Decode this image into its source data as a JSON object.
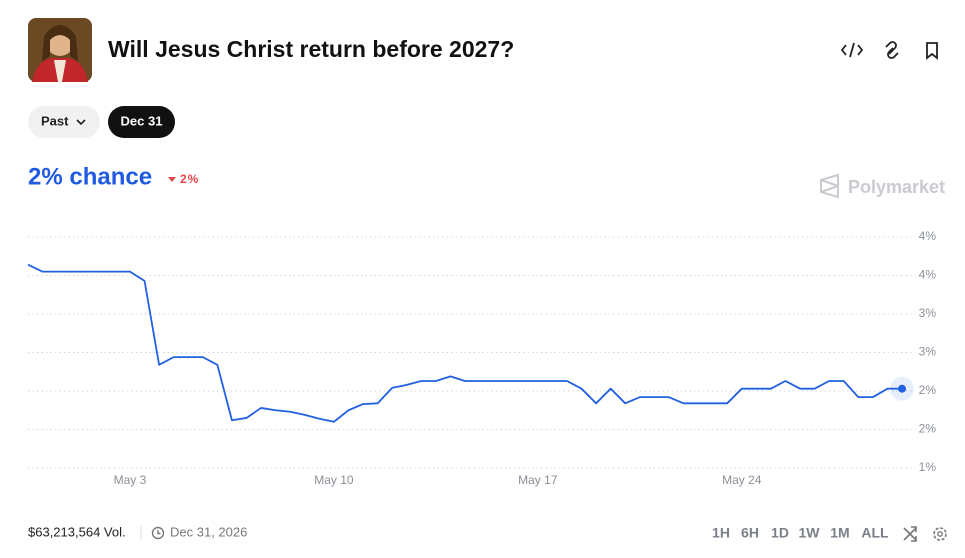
{
  "header": {
    "title": "Will Jesus Christ return before 2027?"
  },
  "filters": [
    "Past",
    "Dec 31"
  ],
  "chance": "2% chance",
  "change": "2%",
  "brand": "Polymarket",
  "chart_data": {
    "type": "line",
    "categories": [
      null,
      null,
      null,
      null,
      null,
      null,
      null,
      "May 3",
      null,
      null,
      null,
      null,
      null,
      null,
      null,
      null,
      null,
      null,
      null,
      null,
      null,
      "May 10",
      null,
      null,
      null,
      null,
      null,
      null,
      null,
      null,
      null,
      null,
      null,
      null,
      null,
      "May 17",
      null,
      null,
      null,
      null,
      null,
      null,
      null,
      null,
      null,
      null,
      null,
      null,
      null,
      "May 24",
      null,
      null,
      null,
      null,
      null,
      null,
      null,
      null,
      null,
      null,
      null
    ],
    "color": "#2160e0",
    "values": [
      3.64,
      3.55,
      3.55,
      3.55,
      3.55,
      3.55,
      3.55,
      3.55,
      3.43,
      2.34,
      2.44,
      2.44,
      2.44,
      2.34,
      1.62,
      1.65,
      1.78,
      1.75,
      1.73,
      1.69,
      1.64,
      1.6,
      1.75,
      1.83,
      1.84,
      2.04,
      2.08,
      2.13,
      2.13,
      2.19,
      2.13,
      2.13,
      2.13,
      2.13,
      2.13,
      2.13,
      2.13,
      2.13,
      2.03,
      1.84,
      2.03,
      1.84,
      1.92,
      1.92,
      1.92,
      1.84,
      1.84,
      1.84,
      1.84,
      2.03,
      2.03,
      2.03,
      2.13,
      2.03,
      2.03,
      2.13,
      2.13,
      1.92,
      1.92,
      2.03,
      2.03
    ],
    "ylim": [
      1,
      4
    ],
    "yticks": [
      {
        "value": 1,
        "label": "1%"
      },
      {
        "value": 1.5,
        "label": "2%"
      },
      {
        "value": 2,
        "label": "2%"
      },
      {
        "value": 2.5,
        "label": "3%"
      },
      {
        "value": 3,
        "label": "3%"
      },
      {
        "value": 3.5,
        "label": "4%"
      },
      {
        "value": 4,
        "label": "4%"
      }
    ],
    "grid": true
  },
  "footer": {
    "volume": "$63,213,564 Vol.",
    "end_date": "Dec 31, 2026",
    "ranges": [
      "1H",
      "6H",
      "1D",
      "1W",
      "1M",
      "ALL"
    ]
  }
}
